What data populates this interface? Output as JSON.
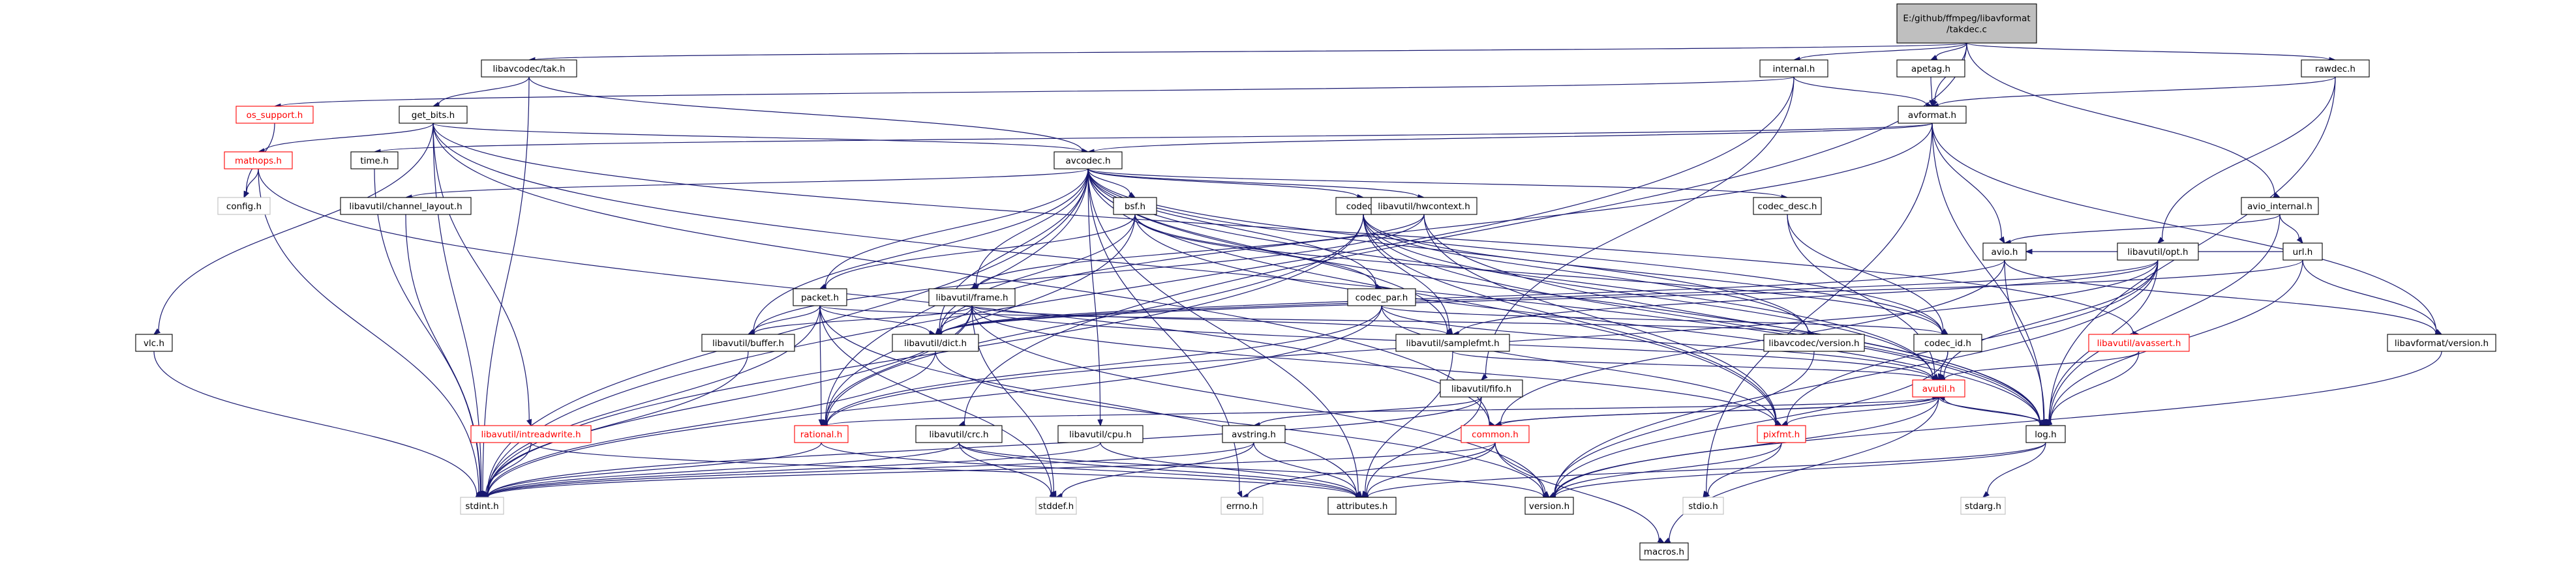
{
  "diagram": {
    "root_label_lines": [
      "E:/github/ffmpeg/libavformat",
      "/takdec.c"
    ],
    "nodes": [
      {
        "id": "root",
        "label": "E:/github/ffmpeg/libavformat\n/takdec.c",
        "style": "root"
      },
      {
        "id": "tak",
        "label": "libavcodec/tak.h",
        "style": "normal"
      },
      {
        "id": "internal",
        "label": "internal.h",
        "style": "normal"
      },
      {
        "id": "apetag",
        "label": "apetag.h",
        "style": "normal"
      },
      {
        "id": "rawdec",
        "label": "rawdec.h",
        "style": "normal"
      },
      {
        "id": "os_support",
        "label": "os_support.h",
        "style": "red"
      },
      {
        "id": "get_bits",
        "label": "get_bits.h",
        "style": "normal"
      },
      {
        "id": "avformat",
        "label": "avformat.h",
        "style": "normal"
      },
      {
        "id": "mathops",
        "label": "mathops.h",
        "style": "red"
      },
      {
        "id": "time",
        "label": "time.h",
        "style": "normal"
      },
      {
        "id": "avcodec",
        "label": "avcodec.h",
        "style": "normal"
      },
      {
        "id": "config",
        "label": "config.h",
        "style": "grey"
      },
      {
        "id": "channel_layout",
        "label": "libavutil/channel_layout.h",
        "style": "normal"
      },
      {
        "id": "codec",
        "label": "codec.h",
        "style": "normal"
      },
      {
        "id": "bsf",
        "label": "bsf.h",
        "style": "normal"
      },
      {
        "id": "hwcontext",
        "label": "libavutil/hwcontext.h",
        "style": "normal"
      },
      {
        "id": "codec_desc",
        "label": "codec_desc.h",
        "style": "normal"
      },
      {
        "id": "avio_internal",
        "label": "avio_internal.h",
        "style": "normal"
      },
      {
        "id": "url",
        "label": "url.h",
        "style": "normal"
      },
      {
        "id": "avio",
        "label": "avio.h",
        "style": "normal"
      },
      {
        "id": "opt",
        "label": "libavutil/opt.h",
        "style": "normal"
      },
      {
        "id": "packet",
        "label": "packet.h",
        "style": "normal"
      },
      {
        "id": "frame",
        "label": "libavutil/frame.h",
        "style": "normal"
      },
      {
        "id": "codec_par",
        "label": "codec_par.h",
        "style": "normal"
      },
      {
        "id": "vlc",
        "label": "vlc.h",
        "style": "normal"
      },
      {
        "id": "buffer",
        "label": "libavutil/buffer.h",
        "style": "normal"
      },
      {
        "id": "dict",
        "label": "libavutil/dict.h",
        "style": "normal"
      },
      {
        "id": "samplefmt",
        "label": "libavutil/samplefmt.h",
        "style": "normal"
      },
      {
        "id": "lavc_version",
        "label": "libavcodec/version.h",
        "style": "normal"
      },
      {
        "id": "codec_id",
        "label": "codec_id.h",
        "style": "normal"
      },
      {
        "id": "avassert",
        "label": "libavutil/avassert.h",
        "style": "red"
      },
      {
        "id": "lavf_version",
        "label": "libavformat/version.h",
        "style": "normal"
      },
      {
        "id": "fifo",
        "label": "libavutil/fifo.h",
        "style": "normal"
      },
      {
        "id": "avutil",
        "label": "avutil.h",
        "style": "red"
      },
      {
        "id": "intreadwrite",
        "label": "libavutil/intreadwrite.h",
        "style": "red"
      },
      {
        "id": "crc",
        "label": "libavutil/crc.h",
        "style": "normal"
      },
      {
        "id": "cpu",
        "label": "libavutil/cpu.h",
        "style": "normal"
      },
      {
        "id": "avstring",
        "label": "avstring.h",
        "style": "normal"
      },
      {
        "id": "rational",
        "label": "rational.h",
        "style": "red"
      },
      {
        "id": "common",
        "label": "common.h",
        "style": "red"
      },
      {
        "id": "pixfmt",
        "label": "pixfmt.h",
        "style": "red"
      },
      {
        "id": "log",
        "label": "log.h",
        "style": "normal"
      },
      {
        "id": "stdint",
        "label": "stdint.h",
        "style": "grey"
      },
      {
        "id": "errno",
        "label": "errno.h",
        "style": "grey"
      },
      {
        "id": "attributes",
        "label": "attributes.h",
        "style": "normal"
      },
      {
        "id": "stddef",
        "label": "stddef.h",
        "style": "grey"
      },
      {
        "id": "version",
        "label": "version.h",
        "style": "normal"
      },
      {
        "id": "stdio",
        "label": "stdio.h",
        "style": "grey"
      },
      {
        "id": "stdarg",
        "label": "stdarg.h",
        "style": "grey"
      },
      {
        "id": "macros",
        "label": "macros.h",
        "style": "normal"
      }
    ],
    "edges": [
      [
        "root",
        "tak"
      ],
      [
        "root",
        "internal"
      ],
      [
        "root",
        "apetag"
      ],
      [
        "root",
        "avformat"
      ],
      [
        "root",
        "rawdec"
      ],
      [
        "root",
        "avio_internal"
      ],
      [
        "root",
        "crc"
      ],
      [
        "tak",
        "get_bits"
      ],
      [
        "tak",
        "avcodec"
      ],
      [
        "tak",
        "stdint"
      ],
      [
        "internal",
        "os_support"
      ],
      [
        "internal",
        "avformat"
      ],
      [
        "internal",
        "stdint"
      ],
      [
        "internal",
        "fifo"
      ],
      [
        "apetag",
        "avformat"
      ],
      [
        "rawdec",
        "avformat"
      ],
      [
        "rawdec",
        "opt"
      ],
      [
        "rawdec",
        "log"
      ],
      [
        "os_support",
        "config"
      ],
      [
        "get_bits",
        "mathops"
      ],
      [
        "get_bits",
        "vlc"
      ],
      [
        "get_bits",
        "avcodec"
      ],
      [
        "get_bits",
        "intreadwrite"
      ],
      [
        "get_bits",
        "common"
      ],
      [
        "get_bits",
        "log"
      ],
      [
        "get_bits",
        "avassert"
      ],
      [
        "get_bits",
        "stdint"
      ],
      [
        "mathops",
        "config"
      ],
      [
        "mathops",
        "common"
      ],
      [
        "mathops",
        "stdint"
      ],
      [
        "avformat",
        "time"
      ],
      [
        "avformat",
        "avcodec"
      ],
      [
        "avformat",
        "avio"
      ],
      [
        "avformat",
        "lavf_version"
      ],
      [
        "avformat",
        "dict"
      ],
      [
        "avformat",
        "log"
      ],
      [
        "avformat",
        "stdio"
      ],
      [
        "time",
        "stdint"
      ],
      [
        "avcodec",
        "channel_layout"
      ],
      [
        "avcodec",
        "codec"
      ],
      [
        "avcodec",
        "bsf"
      ],
      [
        "avcodec",
        "hwcontext"
      ],
      [
        "avcodec",
        "codec_desc"
      ],
      [
        "avcodec",
        "codec_par"
      ],
      [
        "avcodec",
        "packet"
      ],
      [
        "avcodec",
        "frame"
      ],
      [
        "avcodec",
        "buffer"
      ],
      [
        "avcodec",
        "dict"
      ],
      [
        "avcodec",
        "samplefmt"
      ],
      [
        "avcodec",
        "lavc_version"
      ],
      [
        "avcodec",
        "codec_id"
      ],
      [
        "avcodec",
        "avutil"
      ],
      [
        "avcodec",
        "cpu"
      ],
      [
        "avcodec",
        "rational"
      ],
      [
        "avcodec",
        "pixfmt"
      ],
      [
        "avcodec",
        "log"
      ],
      [
        "avcodec",
        "attributes"
      ],
      [
        "avcodec",
        "stdint"
      ],
      [
        "avcodec",
        "errno"
      ],
      [
        "channel_layout",
        "stdint"
      ],
      [
        "codec",
        "hwcontext"
      ],
      [
        "codec",
        "samplefmt"
      ],
      [
        "codec",
        "codec_id"
      ],
      [
        "codec",
        "lavc_version"
      ],
      [
        "codec",
        "avutil"
      ],
      [
        "codec",
        "log"
      ],
      [
        "codec",
        "rational"
      ],
      [
        "codec",
        "pixfmt"
      ],
      [
        "codec",
        "stdint"
      ],
      [
        "bsf",
        "packet"
      ],
      [
        "bsf",
        "codec_par"
      ],
      [
        "bsf",
        "codec_id"
      ],
      [
        "bsf",
        "dict"
      ],
      [
        "bsf",
        "log"
      ],
      [
        "bsf",
        "rational"
      ],
      [
        "hwcontext",
        "frame"
      ],
      [
        "hwcontext",
        "buffer"
      ],
      [
        "hwcontext",
        "pixfmt"
      ],
      [
        "hwcontext",
        "log"
      ],
      [
        "codec_desc",
        "codec_id"
      ],
      [
        "codec_desc",
        "avutil"
      ],
      [
        "avio_internal",
        "url"
      ],
      [
        "avio_internal",
        "avio"
      ],
      [
        "avio_internal",
        "log"
      ],
      [
        "url",
        "avio"
      ],
      [
        "url",
        "lavf_version"
      ],
      [
        "url",
        "dict"
      ],
      [
        "url",
        "log"
      ],
      [
        "avio",
        "common"
      ],
      [
        "avio",
        "dict"
      ],
      [
        "avio",
        "log"
      ],
      [
        "avio",
        "lavf_version"
      ],
      [
        "opt",
        "rational"
      ],
      [
        "opt",
        "avutil"
      ],
      [
        "opt",
        "dict"
      ],
      [
        "opt",
        "log"
      ],
      [
        "opt",
        "pixfmt"
      ],
      [
        "opt",
        "samplefmt"
      ],
      [
        "opt",
        "version"
      ],
      [
        "packet",
        "buffer"
      ],
      [
        "packet",
        "dict"
      ],
      [
        "packet",
        "lavc_version"
      ],
      [
        "packet",
        "rational"
      ],
      [
        "packet",
        "attributes"
      ],
      [
        "packet",
        "stddef"
      ],
      [
        "packet",
        "stdint"
      ],
      [
        "frame",
        "avutil"
      ],
      [
        "frame",
        "buffer"
      ],
      [
        "frame",
        "dict"
      ],
      [
        "frame",
        "rational"
      ],
      [
        "frame",
        "samplefmt"
      ],
      [
        "frame",
        "pixfmt"
      ],
      [
        "frame",
        "version"
      ],
      [
        "frame",
        "stddef"
      ],
      [
        "frame",
        "stdint"
      ],
      [
        "codec_par",
        "codec_id"
      ],
      [
        "codec_par",
        "avutil"
      ],
      [
        "codec_par",
        "rational"
      ],
      [
        "codec_par",
        "pixfmt"
      ],
      [
        "codec_par",
        "stdint"
      ],
      [
        "vlc",
        "stdint"
      ],
      [
        "buffer",
        "stdint"
      ],
      [
        "dict",
        "stdint"
      ],
      [
        "dict",
        "version"
      ],
      [
        "samplefmt",
        "avutil"
      ],
      [
        "samplefmt",
        "attributes"
      ],
      [
        "lavc_version",
        "version"
      ],
      [
        "codec_id",
        "avutil"
      ],
      [
        "codec_id",
        "version"
      ],
      [
        "avassert",
        "avutil"
      ],
      [
        "avassert",
        "log"
      ],
      [
        "lavf_version",
        "version"
      ],
      [
        "fifo",
        "avstring"
      ],
      [
        "fifo",
        "attributes"
      ],
      [
        "fifo",
        "stdint"
      ],
      [
        "avutil",
        "common"
      ],
      [
        "avutil",
        "rational"
      ],
      [
        "avutil",
        "version"
      ],
      [
        "avutil",
        "macros"
      ],
      [
        "avutil",
        "pixfmt"
      ],
      [
        "avutil",
        "log"
      ],
      [
        "intreadwrite",
        "attributes"
      ],
      [
        "intreadwrite",
        "stdint"
      ],
      [
        "crc",
        "stdint"
      ],
      [
        "crc",
        "attributes"
      ],
      [
        "crc",
        "version"
      ],
      [
        "crc",
        "stddef"
      ],
      [
        "cpu",
        "attributes"
      ],
      [
        "cpu",
        "stdint"
      ],
      [
        "avstring",
        "attributes"
      ],
      [
        "avstring",
        "stddef"
      ],
      [
        "avstring",
        "stdint"
      ],
      [
        "rational",
        "stdint"
      ],
      [
        "rational",
        "attributes"
      ],
      [
        "common",
        "errno"
      ],
      [
        "common",
        "attributes"
      ],
      [
        "common",
        "version"
      ],
      [
        "common",
        "macros"
      ],
      [
        "common",
        "stdint"
      ],
      [
        "common",
        "avutil"
      ],
      [
        "pixfmt",
        "version"
      ],
      [
        "pixfmt",
        "stdio"
      ],
      [
        "log",
        "attributes"
      ],
      [
        "log",
        "version"
      ],
      [
        "log",
        "stdarg"
      ],
      [
        "log",
        "avutil"
      ]
    ]
  }
}
